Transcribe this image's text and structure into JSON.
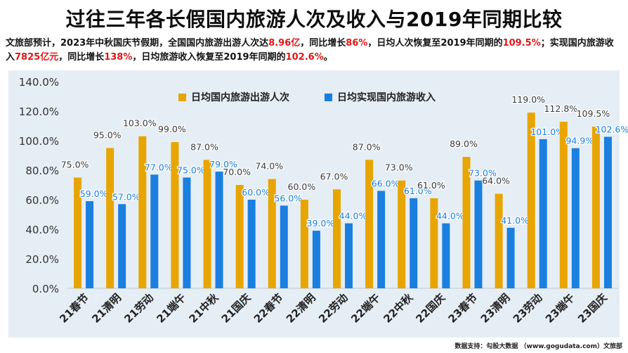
{
  "header": {
    "title": "过往三年各长假国内旅游人次及收入与2019年同期比较",
    "desc_parts": [
      {
        "text": "文旅部预计，2023年中秋国庆节假期，全国国内旅游出游人次达",
        "red": false
      },
      {
        "text": "8.96亿",
        "red": true
      },
      {
        "text": "，同比增长",
        "red": false
      },
      {
        "text": "86%",
        "red": true
      },
      {
        "text": "，日均人次恢复至2019年同期的",
        "red": false
      },
      {
        "text": "109.5%",
        "red": true
      },
      {
        "text": "；实现国内旅游收入",
        "red": false
      },
      {
        "text": "7825亿元",
        "red": true
      },
      {
        "text": "，同比增长",
        "red": false
      },
      {
        "text": "138%",
        "red": true
      },
      {
        "text": "，日均旅游收入恢复至2019年同期的",
        "red": false
      },
      {
        "text": "102.6%",
        "red": true
      },
      {
        "text": "。",
        "red": false
      }
    ]
  },
  "colors": {
    "trips": "#e8a500",
    "revenue": "#1b7fe0",
    "red_text": "#e01818",
    "plot_bg": "#e6eef5"
  },
  "footer": {
    "text": "数据支持：勾股大数据 （www.gogudata.com）文旅部"
  },
  "chart_data": {
    "type": "bar",
    "categories": [
      "21春节",
      "21清明",
      "21劳动",
      "21端午",
      "21中秋",
      "21国庆",
      "22春节",
      "22清明",
      "22劳动",
      "22端午",
      "22中秋",
      "22国庆",
      "23春节",
      "23清明",
      "23劳动",
      "23端午",
      "23国庆"
    ],
    "series": [
      {
        "name": "日均国内旅游出游人次",
        "values": [
          75.0,
          95.0,
          103.0,
          99.0,
          87.0,
          70.0,
          74.0,
          60.0,
          67.0,
          87.0,
          73.0,
          61.0,
          89.0,
          64.0,
          119.0,
          112.8,
          109.5
        ]
      },
      {
        "name": "日均实现国内旅游收入",
        "values": [
          59.0,
          57.0,
          77.0,
          75.0,
          79.0,
          60.0,
          56.0,
          39.0,
          44.0,
          66.0,
          61.0,
          44.0,
          73.0,
          41.0,
          101.0,
          94.9,
          102.6
        ]
      }
    ],
    "y_ticks": [
      "0.0%",
      "20.0%",
      "40.0%",
      "60.0%",
      "80.0%",
      "100.0%",
      "120.0%",
      "140.0%"
    ],
    "ylim": [
      0,
      140
    ],
    "grid": false,
    "legend": "top",
    "title": "过往三年各长假国内旅游人次及收入与2019年同期比较",
    "xlabel": "",
    "ylabel": ""
  }
}
